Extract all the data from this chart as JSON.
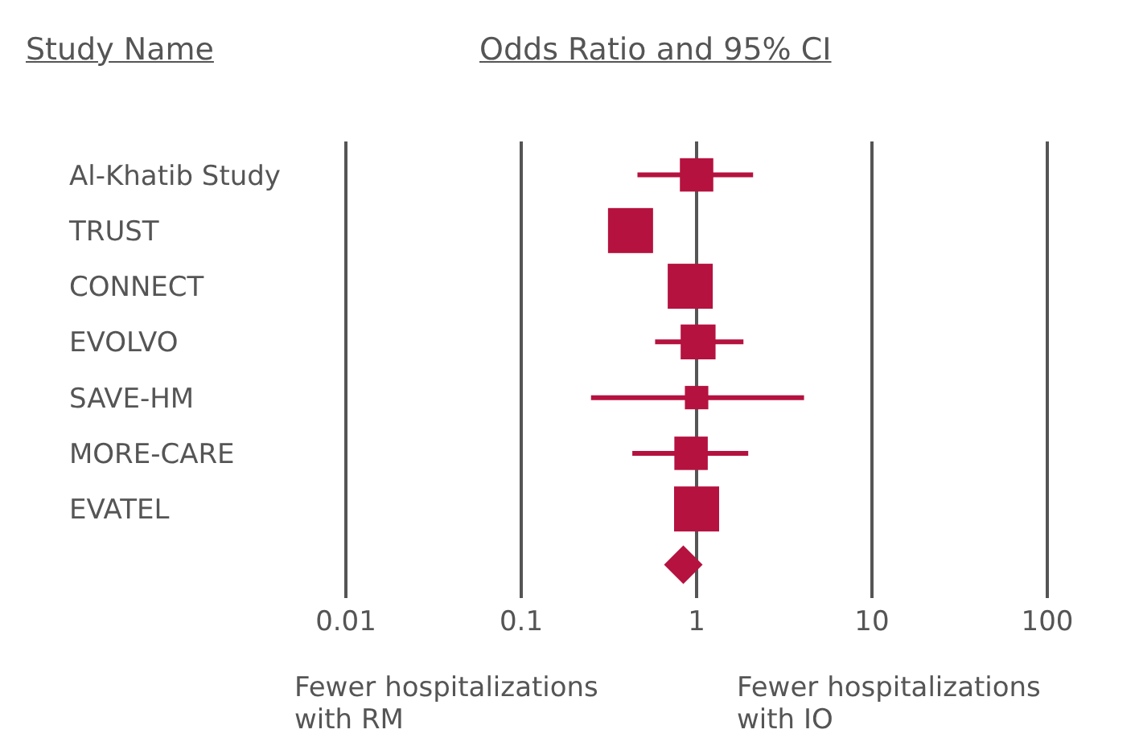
{
  "chart_data": {
    "type": "scatter",
    "title": "Odds Ratio and 95% CI",
    "ylabel": "Study Name",
    "orientation": "horizontal",
    "categories": [
      "Al-Khatib Study",
      "TRUST",
      "CONNECT",
      "EVOLVO",
      "SAVE-HM",
      "MORE-CARE",
      "EVATEL",
      null
    ],
    "log": "x",
    "xlim": [
      0.01,
      100
    ],
    "xticks": [
      0.01,
      0.1,
      1,
      10,
      100
    ],
    "grid": "x",
    "annotations": [
      "Fewer hospitalizations with RM",
      "Fewer hospitalizations with IO"
    ],
    "series": [
      {
        "type": "bubble",
        "marker": "square",
        "color": "#b5123f",
        "values": [
          1.0,
          0.42,
          0.92,
          1.02,
          1.0,
          0.93,
          1.0,
          null
        ],
        "sizes": [
          0.55,
          1,
          1,
          0.6,
          0.27,
          0.55,
          1,
          null
        ],
        "errors": [
          [
            0.46,
            2.1
          ],
          [
            0.33,
            0.56
          ],
          null,
          [
            0.58,
            1.85
          ],
          [
            0.25,
            4.1
          ],
          [
            0.43,
            1.97
          ],
          null,
          null
        ]
      },
      {
        "marker": "diamond",
        "color": "#b5123f",
        "values": [
          null,
          null,
          null,
          null,
          null,
          null,
          null,
          0.84
        ]
      }
    ]
  }
}
